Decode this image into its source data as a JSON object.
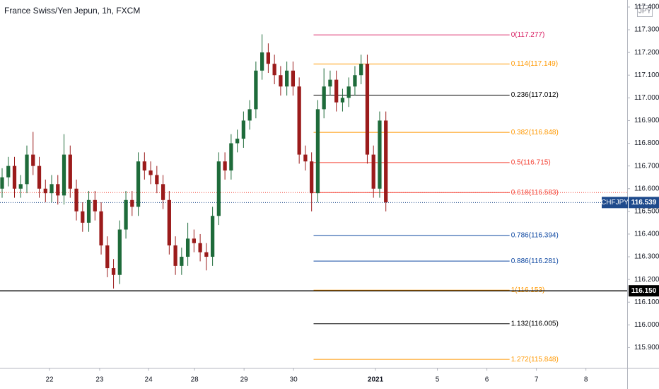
{
  "chart_data": {
    "type": "candlestick",
    "title": "France Swiss/Yen Jepun, 1h, FXCM",
    "currency": "JPY",
    "up_color": "#1e6b3a",
    "down_color": "#9b1b1b",
    "x": [
      0,
      3,
      6,
      9,
      12,
      15,
      18,
      21,
      24,
      27,
      30,
      33,
      36,
      39,
      42,
      45,
      48,
      51,
      54,
      57,
      60,
      63,
      66,
      69,
      72,
      75,
      78,
      81,
      84,
      87,
      90,
      93,
      96,
      99,
      102,
      105,
      108,
      111,
      114,
      117,
      120,
      123,
      126,
      129,
      132,
      135,
      138,
      141,
      144,
      147,
      150,
      153,
      156,
      159,
      162,
      165,
      168,
      171,
      174,
      177,
      180,
      183,
      186
    ],
    "open": [
      116.6,
      116.65,
      116.7,
      116.6,
      116.62,
      116.75,
      116.7,
      116.6,
      116.58,
      116.62,
      116.57,
      116.75,
      116.6,
      116.5,
      116.45,
      116.55,
      116.5,
      116.35,
      116.25,
      116.22,
      116.42,
      116.55,
      116.52,
      116.72,
      116.68,
      116.66,
      116.62,
      116.55,
      116.35,
      116.26,
      116.3,
      116.38,
      116.36,
      116.32,
      116.3,
      116.48,
      116.72,
      116.68,
      116.8,
      116.82,
      116.9,
      116.95,
      117.12,
      117.2,
      117.15,
      117.1,
      117.05,
      117.12,
      117.05,
      116.75,
      116.72,
      116.58,
      116.95,
      117.05,
      117.08,
      116.98,
      117.0,
      117.05,
      117.1,
      117.15,
      116.75,
      116.6,
      116.9
    ],
    "high": [
      116.69,
      116.74,
      116.74,
      116.66,
      116.79,
      116.85,
      116.74,
      116.64,
      116.66,
      116.66,
      116.84,
      116.79,
      116.64,
      116.54,
      116.59,
      116.59,
      116.54,
      116.39,
      116.29,
      116.46,
      116.59,
      116.59,
      116.76,
      116.76,
      116.72,
      116.7,
      116.66,
      116.59,
      116.39,
      116.34,
      116.45,
      116.42,
      116.4,
      116.36,
      116.52,
      116.76,
      116.76,
      116.84,
      116.86,
      116.94,
      116.99,
      117.16,
      117.28,
      117.24,
      117.19,
      117.14,
      117.16,
      117.16,
      117.09,
      116.79,
      116.76,
      116.99,
      117.13,
      117.12,
      117.12,
      117.04,
      117.09,
      117.14,
      117.19,
      117.19,
      116.79,
      116.94,
      116.94
    ],
    "low": [
      116.56,
      116.61,
      116.56,
      116.56,
      116.58,
      116.66,
      116.56,
      116.54,
      116.54,
      116.53,
      116.53,
      116.56,
      116.46,
      116.41,
      116.41,
      116.46,
      116.31,
      116.21,
      116.16,
      116.18,
      116.38,
      116.48,
      116.48,
      116.64,
      116.62,
      116.58,
      116.51,
      116.31,
      116.22,
      116.22,
      116.26,
      116.32,
      116.28,
      116.24,
      116.26,
      116.44,
      116.64,
      116.64,
      116.76,
      116.78,
      116.86,
      116.91,
      117.08,
      117.11,
      117.06,
      117.01,
      117.01,
      117.01,
      116.71,
      116.68,
      116.5,
      116.54,
      116.91,
      117.01,
      116.94,
      116.94,
      116.96,
      117.01,
      117.06,
      116.71,
      116.56,
      116.56,
      116.5
    ],
    "close": [
      116.65,
      116.7,
      116.6,
      116.62,
      116.75,
      116.7,
      116.6,
      116.58,
      116.62,
      116.57,
      116.75,
      116.6,
      116.5,
      116.45,
      116.55,
      116.5,
      116.35,
      116.25,
      116.22,
      116.42,
      116.55,
      116.52,
      116.72,
      116.68,
      116.66,
      116.62,
      116.55,
      116.35,
      116.26,
      116.3,
      116.38,
      116.36,
      116.32,
      116.3,
      116.48,
      116.72,
      116.68,
      116.8,
      116.82,
      116.9,
      116.95,
      117.12,
      117.2,
      117.15,
      117.1,
      117.05,
      117.12,
      117.05,
      116.75,
      116.72,
      116.58,
      116.95,
      117.05,
      117.08,
      116.98,
      117.0,
      117.05,
      117.1,
      117.15,
      116.75,
      116.6,
      116.9,
      116.54
    ],
    "xlim": [
      0,
      304
    ],
    "ylim": [
      115.811,
      117.431
    ],
    "xticks": [
      {
        "value": 24,
        "label": "22"
      },
      {
        "value": 48.3,
        "label": "23"
      },
      {
        "value": 72,
        "label": "24"
      },
      {
        "value": 94.3,
        "label": "28"
      },
      {
        "value": 118.3,
        "label": "29"
      },
      {
        "value": 142.3,
        "label": "30"
      },
      {
        "value": 182,
        "label": "2021"
      },
      {
        "value": 212,
        "label": "5"
      },
      {
        "value": 236,
        "label": "6"
      },
      {
        "value": 260,
        "label": "7"
      },
      {
        "value": 284,
        "label": "8"
      }
    ],
    "yticks": [
      {
        "value": 115.9,
        "label": "115.900"
      },
      {
        "value": 116.0,
        "label": "116.000"
      },
      {
        "value": 116.1,
        "label": "116.100"
      },
      {
        "value": 116.2,
        "label": "116.200"
      },
      {
        "value": 116.3,
        "label": "116.300"
      },
      {
        "value": 116.4,
        "label": "116.400"
      },
      {
        "value": 116.5,
        "label": "116.500"
      },
      {
        "value": 116.6,
        "label": "116.600"
      },
      {
        "value": 116.7,
        "label": "116.700"
      },
      {
        "value": 116.8,
        "label": "116.800"
      },
      {
        "value": 116.9,
        "label": "116.900"
      },
      {
        "value": 117.0,
        "label": "117.000"
      },
      {
        "value": 117.1,
        "label": "117.100"
      },
      {
        "value": 117.2,
        "label": "117.200"
      },
      {
        "value": 117.3,
        "label": "117.300"
      },
      {
        "value": 117.4,
        "label": "117.400"
      }
    ],
    "fib_x": [
      152,
      247
    ],
    "fib_levels": [
      {
        "label": "0(117.277)",
        "value": 117.277,
        "color": "#d81b60"
      },
      {
        "label": "0.114(117.149)",
        "value": 117.149,
        "color": "#ff9800"
      },
      {
        "label": "0.236(117.012)",
        "value": 117.012,
        "color": "#000000"
      },
      {
        "label": "0.382(116.848)",
        "value": 116.848,
        "color": "#ff9800"
      },
      {
        "label": "0.5(116.715)",
        "value": 116.715,
        "color": "#f44336"
      },
      {
        "label": "0.618(116.583)",
        "value": 116.583,
        "color": "#f44336",
        "extended": true
      },
      {
        "label": "0.786(116.394)",
        "value": 116.394,
        "color": "#0d47a1"
      },
      {
        "label": "0.886(116.281)",
        "value": 116.281,
        "color": "#0d47a1"
      },
      {
        "label": "1(116.153)",
        "value": 116.153,
        "color": "#ff9800"
      },
      {
        "label": "1.132(116.005)",
        "value": 116.005,
        "color": "#000000"
      },
      {
        "label": "1.272(115.848)",
        "value": 115.848,
        "color": "#ff9800"
      }
    ],
    "price_line": {
      "name": "CHFJPY",
      "value": 116.539,
      "label": "116.539",
      "color": "#1e4a8c"
    },
    "hline": {
      "value": 116.15,
      "label": "116.150",
      "color": "#000000"
    }
  }
}
